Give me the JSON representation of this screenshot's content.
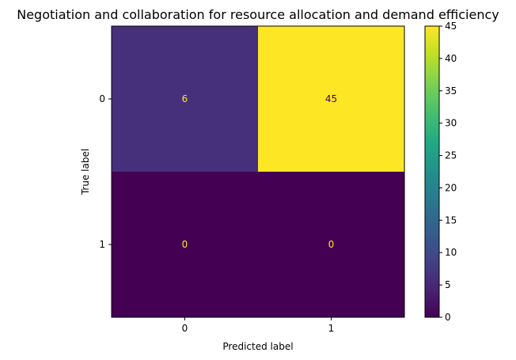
{
  "chart_data": {
    "type": "heatmap",
    "title": "Negotiation and collaboration for resource allocation and demand efficiency",
    "xlabel": "Predicted label",
    "ylabel": "True label",
    "x_categories": [
      "0",
      "1"
    ],
    "y_categories": [
      "0",
      "1"
    ],
    "matrix": [
      [
        6,
        45
      ],
      [
        0,
        0
      ]
    ],
    "colormap": "viridis",
    "colorbar": {
      "min": 0,
      "max": 45,
      "ticks": [
        0,
        5,
        10,
        15,
        20,
        25,
        30,
        35,
        40,
        45
      ]
    },
    "low_value_text_color": "#FDE725",
    "high_value_text_color": "#440154"
  }
}
